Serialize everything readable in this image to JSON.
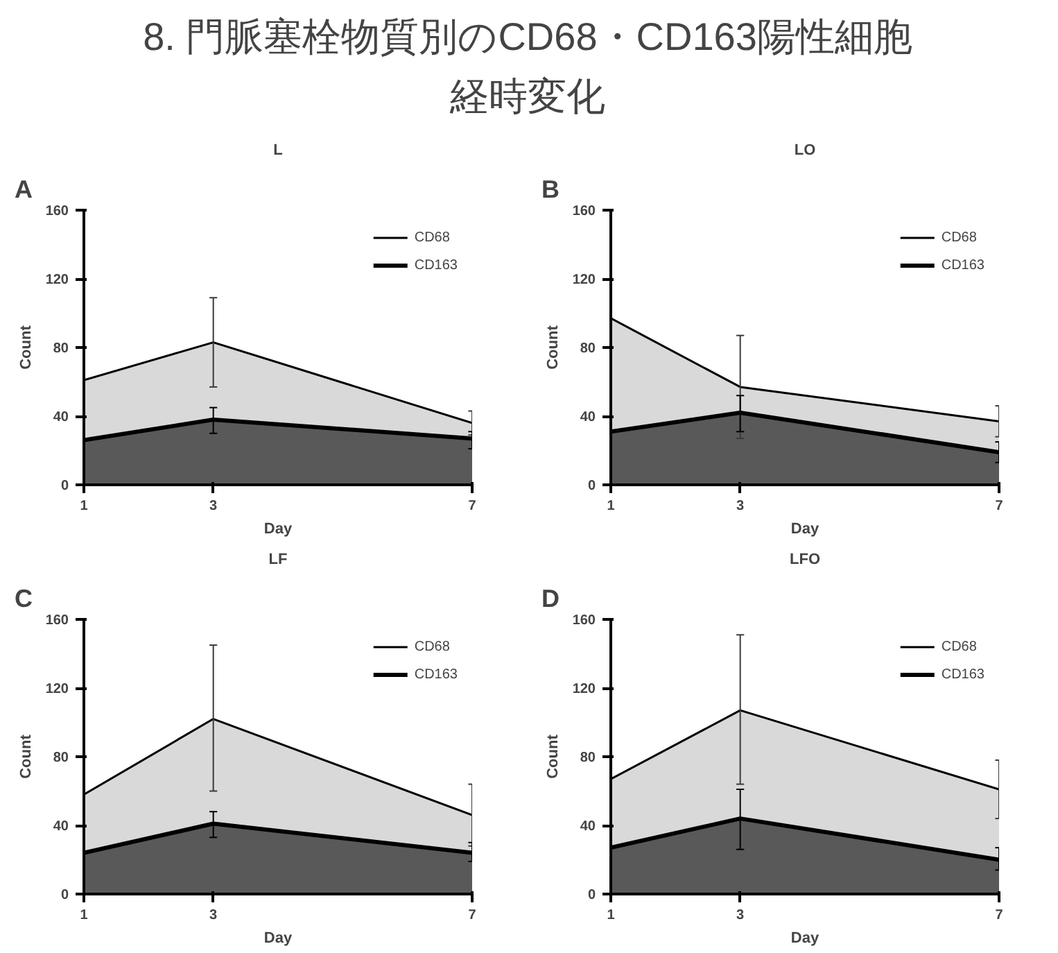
{
  "chart_data": [
    {
      "type": "area",
      "title": "L",
      "xlabel": "Day",
      "ylabel": "Count",
      "annotations": [
        "8. 門脈塞栓物質別のCD68・CD163陽性細胞",
        "経時変化",
        "A"
      ],
      "x": [
        1,
        3,
        7
      ],
      "xlim": [
        1,
        7
      ],
      "ylim": [
        0,
        160
      ],
      "xticks": [
        1,
        3,
        7
      ],
      "yticks": [
        0,
        40,
        80,
        120,
        160
      ],
      "legend": "top right",
      "series": [
        {
          "name": "CD68",
          "color": "#d9d9d9",
          "values": [
            61,
            83,
            36
          ],
          "errors": [
            null,
            [
              57,
              109
            ],
            [
              29,
              43
            ]
          ]
        },
        {
          "name": "CD163",
          "color": "#595959",
          "values": [
            26,
            38,
            27
          ],
          "errors": [
            null,
            [
              30,
              45
            ],
            [
              21,
              31
            ]
          ]
        }
      ]
    },
    {
      "type": "area",
      "title": "LO",
      "xlabel": "Day",
      "ylabel": "Count",
      "annotations": [
        "B"
      ],
      "x": [
        1,
        3,
        7
      ],
      "xlim": [
        1,
        7
      ],
      "ylim": [
        0,
        160
      ],
      "xticks": [
        1,
        3,
        7
      ],
      "yticks": [
        0,
        40,
        80,
        120,
        160
      ],
      "legend": "top right",
      "series": [
        {
          "name": "CD68",
          "color": "#d9d9d9",
          "values": [
            97,
            57,
            37
          ],
          "errors": [
            null,
            [
              27,
              87
            ],
            [
              28,
              46
            ]
          ]
        },
        {
          "name": "CD163",
          "color": "#595959",
          "values": [
            31,
            42,
            19
          ],
          "errors": [
            null,
            [
              31,
              52
            ],
            [
              13,
              25
            ]
          ]
        }
      ]
    },
    {
      "type": "area",
      "title": "LF",
      "xlabel": "Day",
      "ylabel": "Count",
      "annotations": [
        "C"
      ],
      "x": [
        1,
        3,
        7
      ],
      "xlim": [
        1,
        7
      ],
      "ylim": [
        0,
        160
      ],
      "xticks": [
        1,
        3,
        7
      ],
      "yticks": [
        0,
        40,
        80,
        120,
        160
      ],
      "legend": "top right",
      "series": [
        {
          "name": "CD68",
          "color": "#d9d9d9",
          "values": [
            58,
            102,
            46
          ],
          "errors": [
            null,
            [
              60,
              145
            ],
            [
              28,
              64
            ]
          ]
        },
        {
          "name": "CD163",
          "color": "#595959",
          "values": [
            24,
            41,
            24
          ],
          "errors": [
            null,
            [
              33,
              48
            ],
            [
              19,
              30
            ]
          ]
        }
      ]
    },
    {
      "type": "area",
      "title": "LFO",
      "xlabel": "Day",
      "ylabel": "Count",
      "annotations": [
        "D"
      ],
      "x": [
        1,
        3,
        7
      ],
      "xlim": [
        1,
        7
      ],
      "ylim": [
        0,
        160
      ],
      "xticks": [
        1,
        3,
        7
      ],
      "yticks": [
        0,
        40,
        80,
        120,
        160
      ],
      "legend": "top right",
      "series": [
        {
          "name": "CD68",
          "color": "#d9d9d9",
          "values": [
            67,
            107,
            61
          ],
          "errors": [
            null,
            [
              64,
              151
            ],
            [
              44,
              78
            ]
          ]
        },
        {
          "name": "CD163",
          "color": "#595959",
          "values": [
            27,
            44,
            20
          ],
          "errors": [
            null,
            [
              26,
              61
            ],
            [
              14,
              27
            ]
          ]
        }
      ]
    }
  ]
}
